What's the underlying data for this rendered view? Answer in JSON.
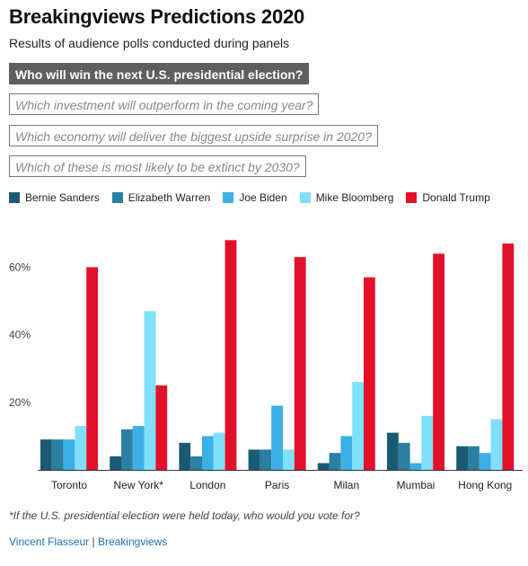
{
  "header": {
    "title": "Breakingviews Predictions 2020",
    "subtitle": "Results of audience polls conducted during panels"
  },
  "questions": [
    {
      "label": "Who will win the next U.S. presidential election?",
      "active": true
    },
    {
      "label": "Which investment will outperform in the coming year?",
      "active": false
    },
    {
      "label": "Which economy will deliver the biggest upside surprise in 2020?",
      "active": false
    },
    {
      "label": "Which of these is most likely to be extinct by 2030?",
      "active": false
    }
  ],
  "chart_data": {
    "type": "bar",
    "title": "",
    "xlabel": "",
    "ylabel": "",
    "categories": [
      "Toronto",
      "New York*",
      "London",
      "Paris",
      "Milan",
      "Mumbai",
      "Hong Kong"
    ],
    "series": [
      {
        "name": "Bernie Sanders",
        "color": "#1b5a73",
        "values": [
          9,
          4,
          8,
          6,
          2,
          11,
          7
        ]
      },
      {
        "name": "Elizabeth Warren",
        "color": "#2a7fa3",
        "values": [
          9,
          12,
          4,
          6,
          5,
          8,
          7
        ]
      },
      {
        "name": "Joe Biden",
        "color": "#3cafe4",
        "values": [
          9,
          13,
          10,
          19,
          10,
          2,
          5
        ]
      },
      {
        "name": "Mike Bloomberg",
        "color": "#7ee0fb",
        "values": [
          13,
          47,
          11,
          6,
          26,
          16,
          15
        ]
      },
      {
        "name": "Donald Trump",
        "color": "#e3102a",
        "values": [
          60,
          25,
          68,
          63,
          57,
          64,
          67
        ]
      }
    ],
    "ylim": [
      0,
      72
    ],
    "yticks": [
      {
        "value": 20,
        "label": "20%"
      },
      {
        "value": 40,
        "label": "40%"
      },
      {
        "value": 60,
        "label": "60%"
      }
    ],
    "grid": false,
    "legend": "top-left"
  },
  "footer": {
    "note": "*If the U.S. presidential election were held today, who would you vote for?",
    "author": "Vincent Flasseur",
    "separator": " | ",
    "publisher": "Breakingviews"
  }
}
